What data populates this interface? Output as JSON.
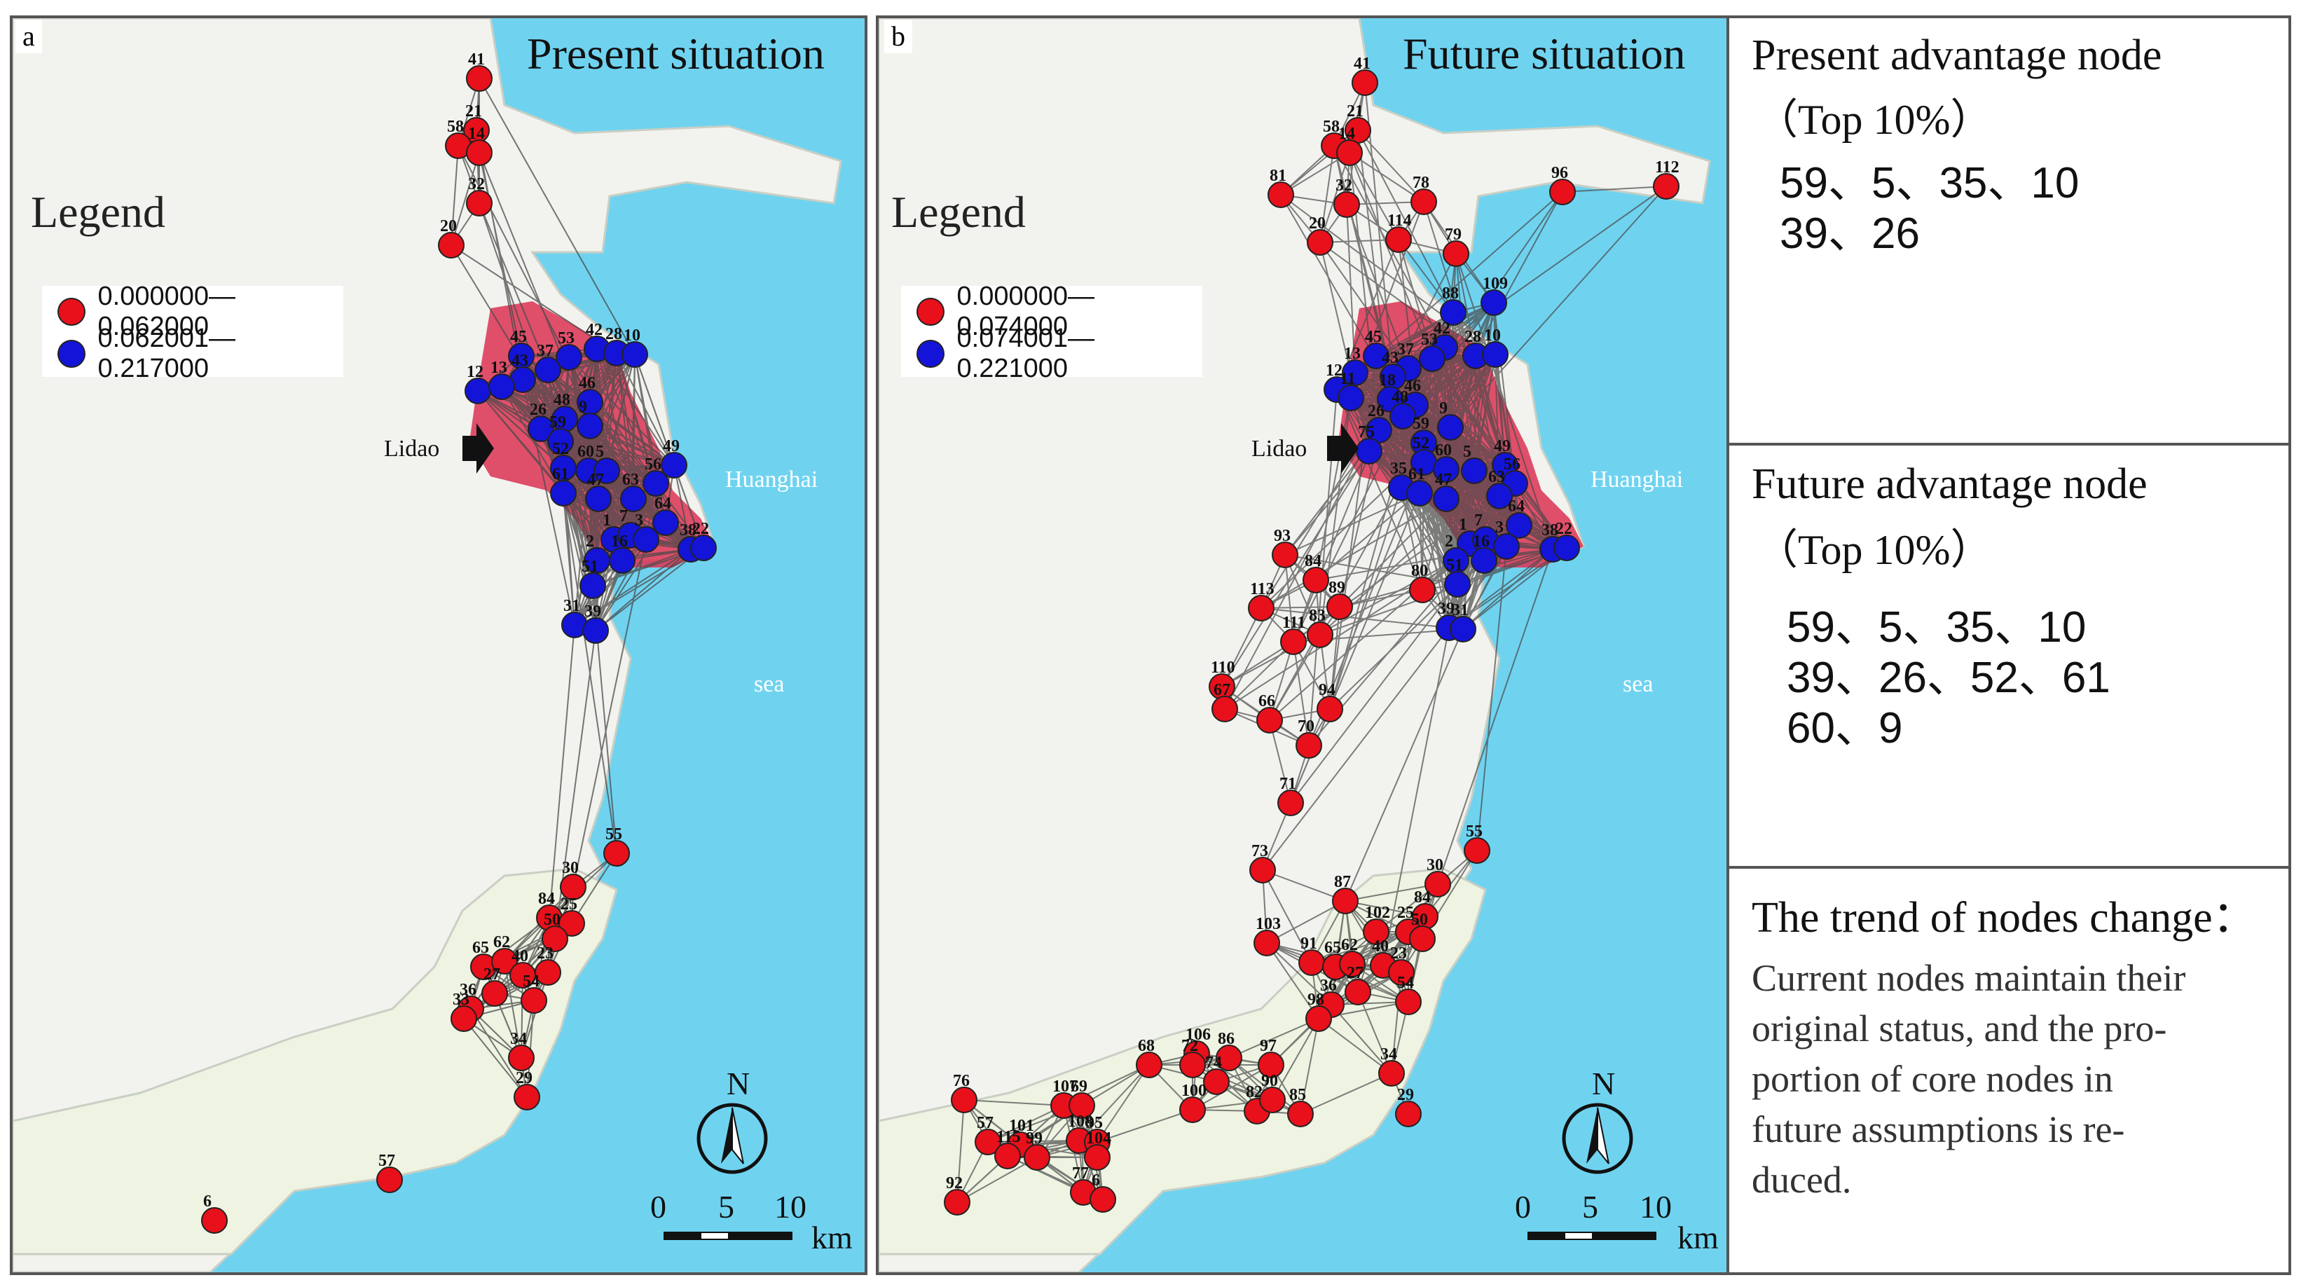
{
  "colors": {
    "sea": "#6fd3f0",
    "land": "#f3f4ef",
    "urban": "#dc3152",
    "node_low": "#e8101a",
    "node_high": "#1414d8",
    "edge": "#4a4a4a"
  },
  "panels": [
    {
      "tag": "a",
      "title": "Present situation",
      "legend_title": "Legend",
      "legend": [
        {
          "label": "0.000000—0.062000",
          "color": "#e8101a"
        },
        {
          "label": "0.062001—0.217000",
          "color": "#1414d8"
        }
      ],
      "places": {
        "lidao": "Lidao",
        "huanghai": "Huanghai",
        "sea": "sea"
      },
      "compass": "N",
      "scale": {
        "ticks": [
          "0",
          "5",
          "10"
        ],
        "unit": "km"
      },
      "nodes": [
        {
          "id": "41",
          "c": "r"
        },
        {
          "id": "21",
          "c": "r"
        },
        {
          "id": "58",
          "c": "r"
        },
        {
          "id": "14",
          "c": "r"
        },
        {
          "id": "32",
          "c": "r"
        },
        {
          "id": "20",
          "c": "r"
        },
        {
          "id": "45",
          "c": "b"
        },
        {
          "id": "42",
          "c": "b"
        },
        {
          "id": "37",
          "c": "b"
        },
        {
          "id": "53",
          "c": "b"
        },
        {
          "id": "28",
          "c": "b"
        },
        {
          "id": "10",
          "c": "b"
        },
        {
          "id": "12",
          "c": "b"
        },
        {
          "id": "43",
          "c": "b"
        },
        {
          "id": "13",
          "c": "b"
        },
        {
          "id": "46",
          "c": "b"
        },
        {
          "id": "48",
          "c": "b"
        },
        {
          "id": "9",
          "c": "b"
        },
        {
          "id": "26",
          "c": "b"
        },
        {
          "id": "59",
          "c": "b"
        },
        {
          "id": "52",
          "c": "b"
        },
        {
          "id": "60",
          "c": "b"
        },
        {
          "id": "5",
          "c": "b"
        },
        {
          "id": "49",
          "c": "b"
        },
        {
          "id": "56",
          "c": "b"
        },
        {
          "id": "61",
          "c": "b"
        },
        {
          "id": "47",
          "c": "b"
        },
        {
          "id": "63",
          "c": "b"
        },
        {
          "id": "64",
          "c": "b"
        },
        {
          "id": "1",
          "c": "b"
        },
        {
          "id": "7",
          "c": "b"
        },
        {
          "id": "3",
          "c": "b"
        },
        {
          "id": "38",
          "c": "b"
        },
        {
          "id": "22",
          "c": "b"
        },
        {
          "id": "2",
          "c": "b"
        },
        {
          "id": "16",
          "c": "b"
        },
        {
          "id": "51",
          "c": "b"
        },
        {
          "id": "31",
          "c": "b"
        },
        {
          "id": "39",
          "c": "b"
        },
        {
          "id": "55",
          "c": "r"
        },
        {
          "id": "30",
          "c": "r"
        },
        {
          "id": "84",
          "c": "r"
        },
        {
          "id": "25",
          "c": "r"
        },
        {
          "id": "50",
          "c": "r"
        },
        {
          "id": "65",
          "c": "r"
        },
        {
          "id": "62",
          "c": "r"
        },
        {
          "id": "40",
          "c": "r"
        },
        {
          "id": "23",
          "c": "r"
        },
        {
          "id": "27",
          "c": "r"
        },
        {
          "id": "54",
          "c": "r"
        },
        {
          "id": "36",
          "c": "r"
        },
        {
          "id": "33",
          "c": "r"
        },
        {
          "id": "34",
          "c": "r"
        },
        {
          "id": "29",
          "c": "r"
        },
        {
          "id": "57",
          "c": "r"
        },
        {
          "id": "6",
          "c": "r"
        }
      ]
    },
    {
      "tag": "b",
      "title": "Future situation",
      "legend_title": "Legend",
      "legend": [
        {
          "label": "0.000000—0.074000",
          "color": "#e8101a"
        },
        {
          "label": "0.074001—0.221000",
          "color": "#1414d8"
        }
      ],
      "places": {
        "lidao": "Lidao",
        "huanghai": "Huanghai",
        "sea": "sea"
      },
      "compass": "N",
      "scale": {
        "ticks": [
          "0",
          "5",
          "10"
        ],
        "unit": "km"
      },
      "nodes": [
        {
          "id": "41",
          "c": "r"
        },
        {
          "id": "21",
          "c": "r"
        },
        {
          "id": "58",
          "c": "r"
        },
        {
          "id": "14",
          "c": "r"
        },
        {
          "id": "81",
          "c": "r"
        },
        {
          "id": "32",
          "c": "r"
        },
        {
          "id": "78",
          "c": "r"
        },
        {
          "id": "96",
          "c": "r"
        },
        {
          "id": "112",
          "c": "r"
        },
        {
          "id": "20",
          "c": "r"
        },
        {
          "id": "114",
          "c": "r"
        },
        {
          "id": "79",
          "c": "r"
        },
        {
          "id": "109",
          "c": "b"
        },
        {
          "id": "88",
          "c": "b"
        },
        {
          "id": "45",
          "c": "b"
        },
        {
          "id": "42",
          "c": "b"
        },
        {
          "id": "37",
          "c": "b"
        },
        {
          "id": "53",
          "c": "b"
        },
        {
          "id": "28",
          "c": "b"
        },
        {
          "id": "10",
          "c": "b"
        },
        {
          "id": "12",
          "c": "b"
        },
        {
          "id": "13",
          "c": "b"
        },
        {
          "id": "43",
          "c": "b"
        },
        {
          "id": "11",
          "c": "b"
        },
        {
          "id": "18",
          "c": "b"
        },
        {
          "id": "46",
          "c": "b"
        },
        {
          "id": "48",
          "c": "b"
        },
        {
          "id": "9",
          "c": "b"
        },
        {
          "id": "26",
          "c": "b"
        },
        {
          "id": "75",
          "c": "b"
        },
        {
          "id": "59",
          "c": "b"
        },
        {
          "id": "52",
          "c": "b"
        },
        {
          "id": "60",
          "c": "b"
        },
        {
          "id": "5",
          "c": "b"
        },
        {
          "id": "49",
          "c": "b"
        },
        {
          "id": "56",
          "c": "b"
        },
        {
          "id": "35",
          "c": "b"
        },
        {
          "id": "61",
          "c": "b"
        },
        {
          "id": "47",
          "c": "b"
        },
        {
          "id": "63",
          "c": "b"
        },
        {
          "id": "64",
          "c": "b"
        },
        {
          "id": "1",
          "c": "b"
        },
        {
          "id": "7",
          "c": "b"
        },
        {
          "id": "3",
          "c": "b"
        },
        {
          "id": "38",
          "c": "b"
        },
        {
          "id": "22",
          "c": "b"
        },
        {
          "id": "2",
          "c": "b"
        },
        {
          "id": "16",
          "c": "b"
        },
        {
          "id": "51",
          "c": "b"
        },
        {
          "id": "39",
          "c": "b"
        },
        {
          "id": "31",
          "c": "b"
        },
        {
          "id": "80",
          "c": "r"
        },
        {
          "id": "93",
          "c": "r"
        },
        {
          "id": "84",
          "c": "r"
        },
        {
          "id": "113",
          "c": "r"
        },
        {
          "id": "89",
          "c": "r"
        },
        {
          "id": "111",
          "c": "r"
        },
        {
          "id": "83",
          "c": "r"
        },
        {
          "id": "110",
          "c": "r"
        },
        {
          "id": "67",
          "c": "r"
        },
        {
          "id": "66",
          "c": "r"
        },
        {
          "id": "94",
          "c": "r"
        },
        {
          "id": "70",
          "c": "r"
        },
        {
          "id": "71",
          "c": "r"
        },
        {
          "id": "55",
          "c": "r"
        },
        {
          "id": "73",
          "c": "r"
        },
        {
          "id": "30",
          "c": "r"
        },
        {
          "id": "87",
          "c": "r"
        },
        {
          "id": "84",
          "c": "r"
        },
        {
          "id": "102",
          "c": "r"
        },
        {
          "id": "25",
          "c": "r"
        },
        {
          "id": "50",
          "c": "r"
        },
        {
          "id": "103",
          "c": "r"
        },
        {
          "id": "91",
          "c": "r"
        },
        {
          "id": "65",
          "c": "r"
        },
        {
          "id": "62",
          "c": "r"
        },
        {
          "id": "40",
          "c": "r"
        },
        {
          "id": "23",
          "c": "r"
        },
        {
          "id": "27",
          "c": "r"
        },
        {
          "id": "54",
          "c": "r"
        },
        {
          "id": "36",
          "c": "r"
        },
        {
          "id": "98",
          "c": "r"
        },
        {
          "id": "34",
          "c": "r"
        },
        {
          "id": "29",
          "c": "r"
        },
        {
          "id": "106",
          "c": "r"
        },
        {
          "id": "86",
          "c": "r"
        },
        {
          "id": "68",
          "c": "r"
        },
        {
          "id": "72",
          "c": "r"
        },
        {
          "id": "74",
          "c": "r"
        },
        {
          "id": "97",
          "c": "r"
        },
        {
          "id": "76",
          "c": "r"
        },
        {
          "id": "107",
          "c": "r"
        },
        {
          "id": "69",
          "c": "r"
        },
        {
          "id": "100",
          "c": "r"
        },
        {
          "id": "82",
          "c": "r"
        },
        {
          "id": "90",
          "c": "r"
        },
        {
          "id": "85",
          "c": "r"
        },
        {
          "id": "57",
          "c": "r"
        },
        {
          "id": "101",
          "c": "r"
        },
        {
          "id": "108",
          "c": "r"
        },
        {
          "id": "95",
          "c": "r"
        },
        {
          "id": "115",
          "c": "r"
        },
        {
          "id": "104",
          "c": "r"
        },
        {
          "id": "99",
          "c": "r"
        },
        {
          "id": "92",
          "c": "r"
        },
        {
          "id": "77",
          "c": "r"
        },
        {
          "id": "6",
          "c": "r"
        }
      ]
    }
  ],
  "right_panel": {
    "present_title": "Present advantage node",
    "present_sub": "（Top 10%）",
    "present_nodes": [
      "59、5、35、10",
      "39、26"
    ],
    "future_title": "Future advantage node",
    "future_sub": "（Top 10%）",
    "future_nodes": [
      "59、5、35、10",
      "39、26、52、61",
      "60、9"
    ],
    "trend_title": "The trend of nodes change：",
    "trend_lines": [
      "Current nodes maintain their",
      "original status, and the pro-",
      "portion of core nodes in",
      "future assumptions is re-",
      "duced."
    ]
  }
}
